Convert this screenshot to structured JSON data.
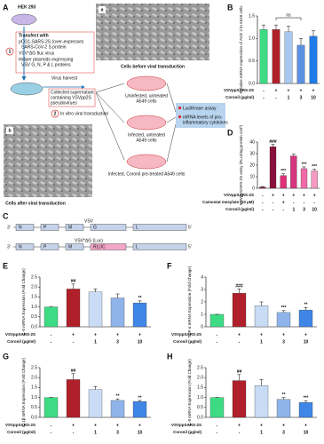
{
  "diagram": {
    "panel": "A",
    "cell_line": "HEK 293",
    "step1_number": "1",
    "transfect": [
      "Transfect with",
      "pCG1-SARS-2S (over-expresses",
      "SARS-CoV-2 S protein",
      "VSV*ΔG fluc virus",
      "Helper plasmids expressing",
      "VSV G, N, P & L proteins"
    ],
    "harvest": "Virus harvest",
    "collected": [
      "Collected supernatant",
      "containing VSVpp2S",
      "pseudovirues"
    ],
    "step2_number": "2",
    "transduction": "In vitro viral transduction",
    "image_a": {
      "label": "a",
      "caption": "Cells before viral transduction"
    },
    "image_b": {
      "label": "b",
      "caption": "Cells after viral transduction"
    },
    "groups": [
      [
        "Uninfected, untreated",
        "A549 cells"
      ],
      [
        "Infected, untreated",
        "A549 cells"
      ],
      [
        "Infected, Coronil pre-treated A549 cells"
      ]
    ],
    "readouts": [
      [
        "Luciferase assay"
      ],
      [
        "mRNA levels of pro-",
        "inflammatory cytokines"
      ]
    ]
  },
  "genome": {
    "panel": "C",
    "constructs": [
      {
        "name": "VSV",
        "left": "3'",
        "genes": [
          "N",
          "P",
          "M",
          "G",
          "L"
        ],
        "right": "5'"
      },
      {
        "name": "VSV*ΔG (Luc)",
        "left": "3'",
        "genes": [
          "N",
          "P",
          "M",
          "RLUC",
          "L"
        ],
        "right": "5'"
      }
    ]
  },
  "chart_data": [
    {
      "type": "bar",
      "panel": "B",
      "ylabel": "Relative mRNA expression of ACE 2 in A549 cells",
      "values": [
        1.2,
        1.2,
        1.15,
        0.85,
        1.05
      ],
      "errors": [
        0.1,
        0.1,
        0.12,
        0.15,
        0.12
      ],
      "colors": [
        "#3ddc84",
        "#b0202a",
        "#a9c8ef",
        "#5b8fe0",
        "#1e7be8"
      ],
      "ylim": [
        0,
        1.5
      ],
      "yticks": [
        {
          "value": 0,
          "label": "0.0"
        },
        {
          "value": 0.5,
          "label": "0.5"
        },
        {
          "value": 1,
          "label": "1.0"
        },
        {
          "value": 1.5,
          "label": "1.5"
        }
      ],
      "annotation": "ns",
      "conditions": [
        {
          "name": "VSVppSARS-2S",
          "values": [
            "-",
            "+",
            "+",
            "+",
            "+"
          ]
        },
        {
          "name": "Coronil (µg/ml)",
          "values": [
            "-",
            "-",
            "1",
            "3",
            "10"
          ]
        }
      ]
    },
    {
      "type": "bar",
      "panel": "D",
      "ylabel": "VSVppSARS-2S entry (RLU/mg protein x10³)",
      "values": [
        1,
        36,
        11,
        28,
        17,
        15
      ],
      "errors": [
        0.5,
        2,
        1.5,
        1.5,
        1.5,
        1.5
      ],
      "colors": [
        "#8a0f3c",
        "#8a0f3c",
        "#e0307a",
        "#d4367f",
        "#f06aa8",
        "#f59ac3"
      ],
      "ylim": [
        0,
        40
      ],
      "yticks": [
        0,
        10,
        20,
        30,
        40
      ],
      "significance": [
        null,
        "###",
        "***",
        null,
        "***",
        "***"
      ],
      "conditions": [
        {
          "name": "VSVppSARS-2S",
          "values": [
            "-",
            "+",
            "+",
            "+",
            "+",
            "+"
          ]
        },
        {
          "name": "Camostat mesylate (10 µM)",
          "values": [
            "-",
            "-",
            "+",
            "-",
            "-",
            "-"
          ]
        },
        {
          "name": "Coronil (µg/ml)",
          "values": [
            "-",
            "-",
            "-",
            "1",
            "3",
            "10"
          ]
        }
      ]
    },
    {
      "type": "bar",
      "panel": "E",
      "ylabel": "IL-6 mRNA Expression (Fold Change)",
      "values": [
        1.0,
        1.9,
        1.75,
        1.45,
        1.2
      ],
      "errors": [
        0,
        0.25,
        0.15,
        0.2,
        0.1
      ],
      "colors": [
        "#3ddc84",
        "#b0202a",
        "#c9dcf5",
        "#8fb4ea",
        "#3f86e6"
      ],
      "ylim": [
        0,
        2.5
      ],
      "yticks": [
        {
          "value": 0,
          "label": "0.0"
        },
        {
          "value": 0.5,
          "label": "0.5"
        },
        {
          "value": 1,
          "label": "1.0"
        },
        {
          "value": 1.5,
          "label": "1.5"
        },
        {
          "value": 2,
          "label": "2.0"
        },
        {
          "value": 2.5,
          "label": "2.5"
        }
      ],
      "significance": [
        null,
        "##",
        null,
        null,
        "**"
      ],
      "conditions": [
        {
          "name": "VSVppSARS-2S",
          "values": [
            "-",
            "+",
            "+",
            "+",
            "+"
          ]
        },
        {
          "name": "Coronil (µg/ml)",
          "values": [
            "-",
            "-",
            "1",
            "3",
            "10"
          ]
        }
      ]
    },
    {
      "type": "bar",
      "panel": "F",
      "ylabel": "TNF-α mRNA Expression (Fold Change)",
      "values": [
        1.0,
        2.7,
        1.7,
        1.15,
        1.35
      ],
      "errors": [
        0,
        0.35,
        0.3,
        0.15,
        0.2
      ],
      "colors": [
        "#3ddc84",
        "#b0202a",
        "#c9dcf5",
        "#8fb4ea",
        "#3f86e6"
      ],
      "ylim": [
        0,
        4
      ],
      "yticks": [
        0,
        1,
        2,
        3,
        4
      ],
      "significance": [
        null,
        "###",
        null,
        "***",
        "**"
      ],
      "conditions": [
        {
          "name": "VSVppSARS-2S",
          "values": [
            "-",
            "+",
            "+",
            "+",
            "+"
          ]
        },
        {
          "name": "Coronil (µg/ml)",
          "values": [
            "-",
            "-",
            "1",
            "3",
            "10"
          ]
        }
      ]
    },
    {
      "type": "bar",
      "panel": "G",
      "ylabel": "IL-1β mRNA Expression (Fold Change)",
      "values": [
        1.0,
        1.9,
        1.4,
        0.85,
        0.8
      ],
      "errors": [
        0,
        0.3,
        0.15,
        0.08,
        0.05
      ],
      "colors": [
        "#3ddc84",
        "#b0202a",
        "#c9dcf5",
        "#8fb4ea",
        "#3f86e6"
      ],
      "ylim": [
        0,
        2.5
      ],
      "yticks": [
        {
          "value": 0,
          "label": "0.0"
        },
        {
          "value": 0.5,
          "label": "0.5"
        },
        {
          "value": 1,
          "label": "1.0"
        },
        {
          "value": 1.5,
          "label": "1.5"
        },
        {
          "value": 2,
          "label": "2.0"
        },
        {
          "value": 2.5,
          "label": "2.5"
        }
      ],
      "significance": [
        null,
        "##",
        null,
        "**",
        "**"
      ],
      "conditions": [
        {
          "name": "VSVppSARS-2S",
          "values": [
            "-",
            "+",
            "+",
            "+",
            "+"
          ]
        },
        {
          "name": "Coronil (µg/ml)",
          "values": [
            "-",
            "-",
            "1",
            "3",
            "10"
          ]
        }
      ]
    },
    {
      "type": "bar",
      "panel": "H",
      "ylabel": "IL-8 mRNA Expression (Fold Change)",
      "values": [
        1.0,
        1.85,
        1.6,
        0.9,
        0.75
      ],
      "errors": [
        0,
        0.3,
        0.3,
        0.1,
        0.08
      ],
      "colors": [
        "#3ddc84",
        "#b0202a",
        "#c9dcf5",
        "#8fb4ea",
        "#3f86e6"
      ],
      "ylim": [
        0,
        2.5
      ],
      "yticks": [
        {
          "value": 0,
          "label": "0.0"
        },
        {
          "value": 0.5,
          "label": "0.5"
        },
        {
          "value": 1,
          "label": "1.0"
        },
        {
          "value": 1.5,
          "label": "1.5"
        },
        {
          "value": 2,
          "label": "2.0"
        },
        {
          "value": 2.5,
          "label": "2.5"
        }
      ],
      "significance": [
        null,
        "##",
        null,
        "**",
        "***"
      ],
      "conditions": [
        {
          "name": "VSVppSARS-2S",
          "values": [
            "-",
            "+",
            "+",
            "+",
            "+"
          ]
        },
        {
          "name": "Coronil (µg/ml)",
          "values": [
            "-",
            "-",
            "1",
            "3",
            "10"
          ]
        }
      ]
    }
  ]
}
